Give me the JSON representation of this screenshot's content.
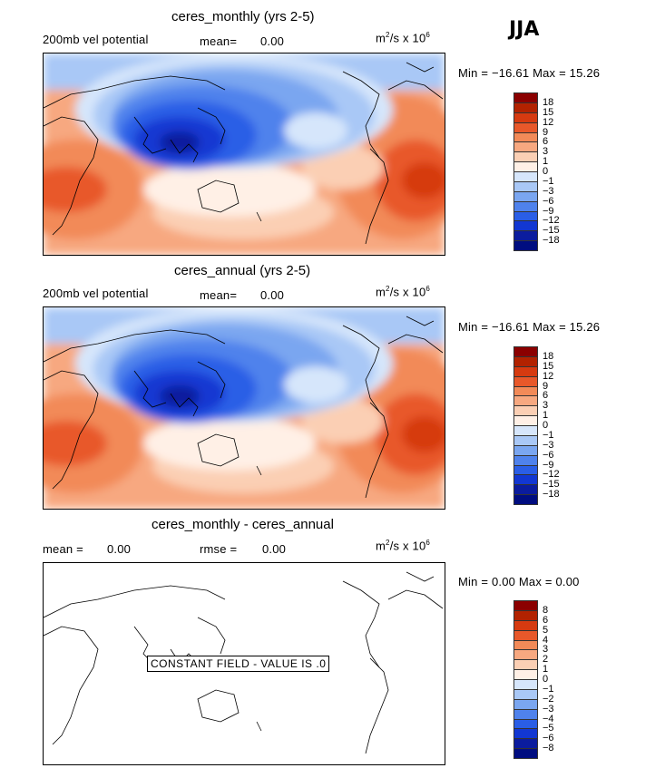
{
  "season": "JJA",
  "panels": [
    {
      "title": "ceres_monthly (yrs 2-5)",
      "left_label": "200mb vel potential",
      "mean_label": "mean=",
      "mean_value": "0.00",
      "units_base": "m",
      "units_exp1": "2",
      "units_mid": "/s x 10",
      "units_exp2": "6",
      "minmax_text": "Min = −16.61 Max =  15.26",
      "colorbar": {
        "levels": [
          "18",
          "15",
          "12",
          "9",
          "6",
          "3",
          "1",
          "0",
          "−1",
          "−3",
          "−6",
          "−9",
          "−12",
          "−15",
          "−18"
        ],
        "colors": [
          "#8b0000",
          "#b22200",
          "#d63a10",
          "#e8582a",
          "#f28a58",
          "#f7a880",
          "#fbcfb4",
          "#fff0e6",
          "#d6e6fb",
          "#a9c8f6",
          "#7aa6f0",
          "#4f82ec",
          "#2a5ee6",
          "#1237d2",
          "#0b1c9e",
          "#000d80"
        ]
      }
    },
    {
      "title": "ceres_annual (yrs 2-5)",
      "left_label": "200mb vel potential",
      "mean_label": "mean=",
      "mean_value": "0.00",
      "units_base": "m",
      "units_exp1": "2",
      "units_mid": "/s x 10",
      "units_exp2": "6",
      "minmax_text": "Min = −16.61 Max =  15.26",
      "colorbar": {
        "levels": [
          "18",
          "15",
          "12",
          "9",
          "6",
          "3",
          "1",
          "0",
          "−1",
          "−3",
          "−6",
          "−9",
          "−12",
          "−15",
          "−18"
        ],
        "colors": [
          "#8b0000",
          "#b22200",
          "#d63a10",
          "#e8582a",
          "#f28a58",
          "#f7a880",
          "#fbcfb4",
          "#fff0e6",
          "#d6e6fb",
          "#a9c8f6",
          "#7aa6f0",
          "#4f82ec",
          "#2a5ee6",
          "#1237d2",
          "#0b1c9e",
          "#000d80"
        ]
      }
    },
    {
      "title": "ceres_monthly - ceres_annual",
      "left_label": "mean =",
      "left_value": "0.00",
      "mean_label": "rmse =",
      "mean_value": "0.00",
      "units_base": "m",
      "units_exp1": "2",
      "units_mid": "/s x 10",
      "units_exp2": "6",
      "minmax_text": "Min =   0.00 Max =   0.00",
      "constant_text": "CONSTANT FIELD - VALUE IS .0",
      "colorbar": {
        "levels": [
          "8",
          "6",
          "5",
          "4",
          "3",
          "2",
          "1",
          "0",
          "−1",
          "−2",
          "−3",
          "−4",
          "−5",
          "−6",
          "−8"
        ],
        "colors": [
          "#8b0000",
          "#b22200",
          "#d63a10",
          "#e8582a",
          "#f28a58",
          "#f7a880",
          "#fbcfb4",
          "#fff0e6",
          "#d6e6fb",
          "#a9c8f6",
          "#7aa6f0",
          "#4f82ec",
          "#2a5ee6",
          "#1237d2",
          "#0b1c9e",
          "#000d80"
        ]
      }
    }
  ],
  "chart_data": [
    {
      "type": "heatmap",
      "title": "ceres_monthly (yrs 2-5)",
      "variable": "200mb vel potential",
      "season": "JJA",
      "mean": 0.0,
      "min": -16.61,
      "max": 15.26,
      "units": "m^2/s x 10^6",
      "contour_levels": [
        -18,
        -15,
        -12,
        -9,
        -6,
        -3,
        -1,
        0,
        1,
        3,
        6,
        9,
        12,
        15,
        18
      ]
    },
    {
      "type": "heatmap",
      "title": "ceres_annual (yrs 2-5)",
      "variable": "200mb vel potential",
      "season": "JJA",
      "mean": 0.0,
      "min": -16.61,
      "max": 15.26,
      "units": "m^2/s x 10^6",
      "contour_levels": [
        -18,
        -15,
        -12,
        -9,
        -6,
        -3,
        -1,
        0,
        1,
        3,
        6,
        9,
        12,
        15,
        18
      ]
    },
    {
      "type": "heatmap",
      "title": "ceres_monthly - ceres_annual",
      "season": "JJA",
      "mean": 0.0,
      "rmse": 0.0,
      "min": 0.0,
      "max": 0.0,
      "units": "m^2/s x 10^6",
      "contour_levels": [
        -8,
        -6,
        -5,
        -4,
        -3,
        -2,
        -1,
        0,
        1,
        2,
        3,
        4,
        5,
        6,
        8
      ],
      "note": "CONSTANT FIELD - VALUE IS .0"
    }
  ]
}
